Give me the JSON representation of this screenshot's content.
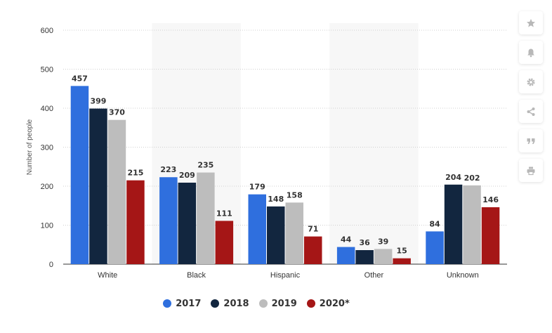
{
  "chart_data": {
    "type": "bar",
    "categories": [
      "White",
      "Black",
      "Hispanic",
      "Other",
      "Unknown"
    ],
    "series": [
      {
        "name": "2017",
        "color": "#2f6fde",
        "values": [
          457,
          223,
          179,
          44,
          84
        ]
      },
      {
        "name": "2018",
        "color": "#12263f",
        "values": [
          399,
          209,
          148,
          36,
          204
        ]
      },
      {
        "name": "2019",
        "color": "#bdbdbd",
        "values": [
          370,
          235,
          158,
          39,
          202
        ]
      },
      {
        "name": "2020*",
        "color": "#a51616",
        "values": [
          215,
          111,
          71,
          15,
          146
        ]
      }
    ],
    "ylabel": "Number of people",
    "xlabel": "",
    "ylim": [
      0,
      600
    ],
    "yticks": [
      0,
      100,
      200,
      300,
      400,
      500,
      600
    ],
    "grid": true,
    "data_labels": true,
    "legend_position": "bottom-center"
  },
  "toolbar": {
    "buttons": [
      {
        "name": "star-icon"
      },
      {
        "name": "bell-icon"
      },
      {
        "name": "gear-icon"
      },
      {
        "name": "share-icon"
      },
      {
        "name": "quote-icon"
      },
      {
        "name": "print-icon"
      }
    ]
  }
}
